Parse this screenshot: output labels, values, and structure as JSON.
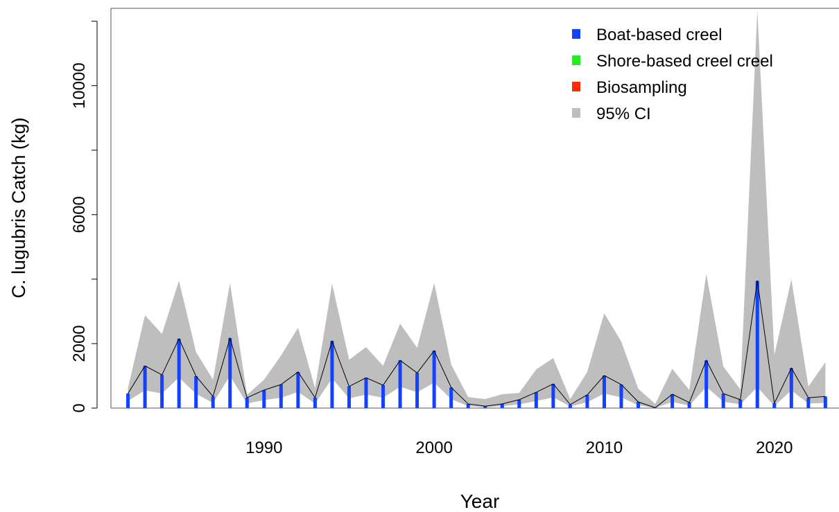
{
  "chart_data": {
    "type": "bar",
    "x_label": "Year",
    "y_label": "C. lugubris Catch (kg)",
    "x": [
      1982,
      1983,
      1984,
      1985,
      1986,
      1987,
      1988,
      1989,
      1990,
      1991,
      1992,
      1993,
      1994,
      1995,
      1996,
      1997,
      1998,
      1999,
      2000,
      2001,
      2002,
      2003,
      2004,
      2005,
      2006,
      2007,
      2008,
      2009,
      2010,
      2011,
      2012,
      2013,
      2014,
      2015,
      2016,
      2017,
      2018,
      2019,
      2020,
      2021,
      2022,
      2023
    ],
    "series": [
      {
        "name": "Boat-based creel",
        "color": "#1440ff",
        "values": [
          450,
          1310,
          1030,
          2150,
          990,
          360,
          2170,
          320,
          560,
          730,
          1120,
          320,
          2080,
          670,
          940,
          710,
          1480,
          1090,
          1780,
          640,
          130,
          60,
          130,
          260,
          490,
          750,
          110,
          410,
          1010,
          730,
          190,
          10,
          430,
          170,
          1480,
          450,
          260,
          3950,
          150,
          1240,
          320,
          360
        ]
      },
      {
        "name": "Shore-based creel creel",
        "color": "#22ee22"
      },
      {
        "name": "Biosampling",
        "color": "#ff2a00"
      }
    ],
    "ci": {
      "name": "95% CI",
      "color": "#bebebe",
      "upper": [
        620,
        2880,
        2300,
        3950,
        1740,
        880,
        3880,
        410,
        880,
        1630,
        2490,
        620,
        3860,
        1500,
        1890,
        1310,
        2620,
        1870,
        3880,
        1350,
        340,
        280,
        430,
        470,
        1200,
        1550,
        280,
        1120,
        2940,
        2060,
        600,
        130,
        1220,
        560,
        4160,
        1290,
        580,
        12340,
        1650,
        3990,
        670,
        1420
      ],
      "lower": [
        220,
        550,
        450,
        950,
        440,
        160,
        1000,
        140,
        250,
        320,
        500,
        140,
        920,
        300,
        420,
        320,
        660,
        490,
        790,
        280,
        60,
        25,
        60,
        115,
        220,
        330,
        50,
        180,
        450,
        330,
        85,
        5,
        190,
        75,
        660,
        200,
        115,
        650,
        65,
        550,
        140,
        160
      ]
    },
    "line_color": "#000000",
    "xlim": [
      1981,
      2023.8
    ],
    "ylim": [
      0,
      12400
    ],
    "xticks": [
      1990,
      2000,
      2010,
      2020
    ],
    "yticks": [
      0,
      2000,
      6000,
      10000
    ],
    "yticks_unlabeled": [
      4000,
      8000,
      12000
    ],
    "legend_position": "top-right"
  }
}
